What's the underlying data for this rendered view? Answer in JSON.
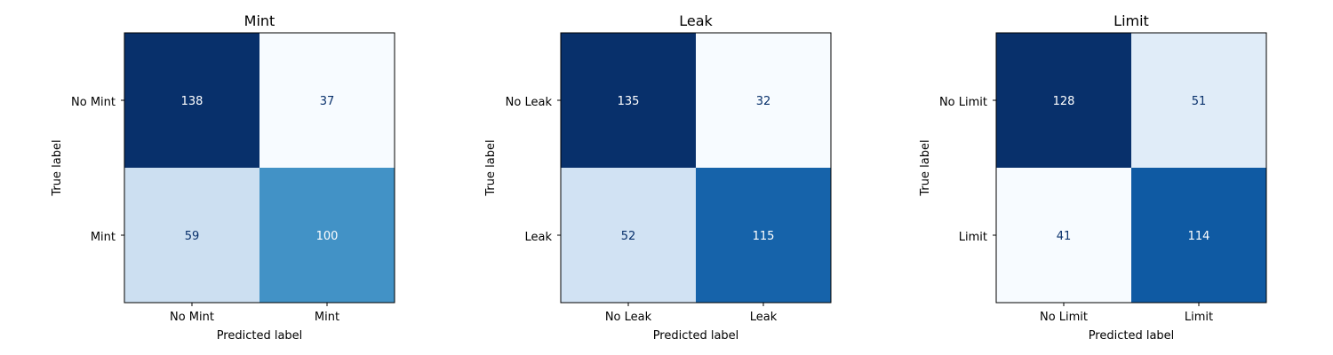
{
  "chart_data": [
    {
      "type": "heatmap",
      "title": "Mint",
      "xlabel": "Predicted label",
      "ylabel": "True label",
      "x_categories": [
        "No Mint",
        "Mint"
      ],
      "y_categories": [
        "No Mint",
        "Mint"
      ],
      "values": [
        [
          138,
          37
        ],
        [
          59,
          100
        ]
      ],
      "colormap": "Blues",
      "grid": false
    },
    {
      "type": "heatmap",
      "title": "Leak",
      "xlabel": "Predicted label",
      "ylabel": "True label",
      "x_categories": [
        "No Leak",
        "Leak"
      ],
      "y_categories": [
        "No Leak",
        "Leak"
      ],
      "values": [
        [
          135,
          32
        ],
        [
          52,
          115
        ]
      ],
      "colormap": "Blues",
      "grid": false
    },
    {
      "type": "heatmap",
      "title": "Limit",
      "xlabel": "Predicted label",
      "ylabel": "True label",
      "x_categories": [
        "No Limit",
        "Limit"
      ],
      "y_categories": [
        "No Limit",
        "Limit"
      ],
      "values": [
        [
          128,
          51
        ],
        [
          41,
          114
        ]
      ],
      "colormap": "Blues",
      "grid": false
    }
  ]
}
